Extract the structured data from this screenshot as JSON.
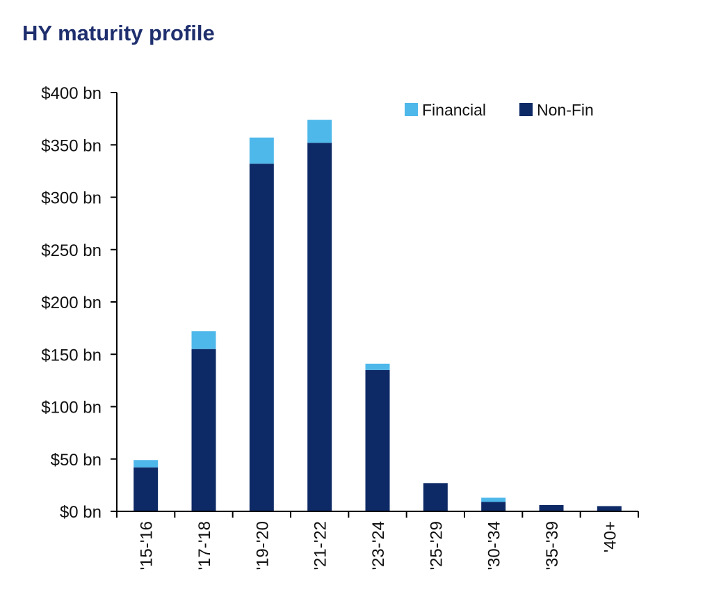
{
  "chart_data": {
    "type": "bar",
    "stacked": true,
    "title": "HY maturity profile",
    "xlabel": "",
    "ylabel": "",
    "categories": [
      "'15-'16",
      "'17-'18",
      "'19-'20",
      "'21-'22",
      "'23-'24",
      "'25-'29",
      "'30-'34",
      "'35-'39",
      "'40+"
    ],
    "series": [
      {
        "name": "Non-Fin",
        "color": "#0e2a66",
        "values": [
          42,
          155,
          332,
          352,
          135,
          27,
          9,
          6,
          5
        ]
      },
      {
        "name": "Financial",
        "color": "#4fb8ea",
        "values": [
          7,
          17,
          25,
          22,
          6,
          0,
          4,
          0,
          0
        ]
      }
    ],
    "ylim": [
      0,
      400
    ],
    "yticks": [
      0,
      50,
      100,
      150,
      200,
      250,
      300,
      350,
      400
    ],
    "ytick_labels": [
      "$0 bn",
      "$50 bn",
      "$100 bn",
      "$150 bn",
      "$200 bn",
      "$250 bn",
      "$300 bn",
      "$350 bn",
      "$400 bn"
    ],
    "legend_position": "top-right",
    "legend_order": [
      "Financial",
      "Non-Fin"
    ],
    "grid": false
  }
}
